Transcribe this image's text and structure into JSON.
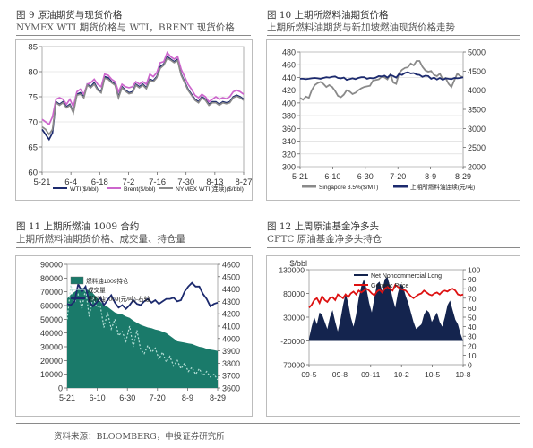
{
  "footer": "资料来源：BLOOMBERG，中投证券研究所",
  "charts": {
    "fig9": {
      "title": "图 9  原油期货与现货价格",
      "subtitle": "NYMEX WTI 期货价格与 WTI，BRENT 现货价格",
      "chart_data": {
        "type": "line",
        "x_labels": [
          "5-21",
          "6-4",
          "6-18",
          "7-2",
          "7-16",
          "7-30",
          "8-13",
          "8-27"
        ],
        "ylim": [
          60,
          85
        ],
        "y_ticks": [
          60,
          65,
          70,
          75,
          80,
          85
        ],
        "series": [
          {
            "name": "WTI($/bbl)",
            "color": "#1c2a6e",
            "values": [
              68.5,
              67.5,
              66.5,
              67.8,
              74,
              73.5,
              74,
              73,
              73.5,
              72,
              75.5,
              75.8,
              75,
              77.5,
              77,
              77.8,
              76.5,
              76,
              79,
              78.8,
              78,
              77.5,
              75,
              77,
              76.3,
              75.8,
              76,
              77.5,
              77,
              77.5,
              76.8,
              78.5,
              78.2,
              79,
              81,
              81.5,
              83,
              82.5,
              82,
              82.5,
              79.5,
              78,
              76.5,
              75.5,
              74.5,
              74,
              75,
              74.5,
              73.5,
              74,
              74,
              73.5,
              74,
              73.8,
              74,
              75,
              75.3,
              75,
              74.5
            ]
          },
          {
            "name": "Brent($/bbl)",
            "color": "#cc66cc",
            "values": [
              70.5,
              70,
              69.5,
              71,
              74.5,
              74.8,
              74.5,
              73.5,
              74.5,
              73,
              76,
              76.5,
              75.5,
              77.5,
              77.8,
              78.5,
              77.5,
              77,
              79.5,
              79.3,
              78.5,
              78,
              76,
              77.5,
              77,
              76.8,
              77,
              78,
              77.5,
              78,
              77.5,
              79.5,
              79,
              79.8,
              81.8,
              82,
              83.8,
              83,
              82.5,
              83,
              80.5,
              79,
              77.5,
              76.5,
              75.3,
              74.8,
              75.5,
              75,
              74,
              74.5,
              75,
              74.5,
              74.8,
              74.6,
              75,
              76,
              76.3,
              76,
              75.5
            ]
          },
          {
            "name": "NYMEX WTI(连续)($/bbl)",
            "color": "#8a8a8a",
            "values": [
              69,
              68.5,
              67.5,
              68.5,
              73.8,
              73.3,
              73.8,
              72.8,
              73.3,
              71.8,
              75.3,
              75.5,
              74.8,
              77.3,
              76.8,
              77.5,
              76.3,
              75.8,
              78.7,
              78.5,
              77.8,
              77.3,
              74.8,
              76.8,
              76.1,
              75.6,
              75.8,
              77.3,
              76.8,
              77.3,
              76.6,
              78.3,
              78,
              78.8,
              80.7,
              81.3,
              82.7,
              82.3,
              81.8,
              82.2,
              79.3,
              77.8,
              76.3,
              75.3,
              74.3,
              73.8,
              74.8,
              74.3,
              73.3,
              73.8,
              73.8,
              73.3,
              73.8,
              73.6,
              73.8,
              74.8,
              75.1,
              74.8,
              74.3
            ]
          }
        ],
        "legend_position": "bottom"
      }
    },
    "fig10": {
      "title": "图 10  上期所燃料油期货价格",
      "subtitle": "上期所燃料油期货与新加坡燃油现货价格走势",
      "chart_data": {
        "type": "line",
        "x_labels": [
          "5-21",
          "6-10",
          "6-30",
          "7-20",
          "8-9",
          "8-29"
        ],
        "ylim_left": [
          300,
          480
        ],
        "y_ticks_left": [
          300,
          320,
          340,
          360,
          380,
          400,
          420,
          440,
          460,
          480
        ],
        "ylim_right": [
          2000,
          5000
        ],
        "y_ticks_right": [
          2000,
          2500,
          3000,
          3500,
          4000,
          4500,
          5000
        ],
        "series": [
          {
            "name": "Singapore 3.5%($/MT)",
            "axis": "left",
            "color": "#8a8a8a",
            "values": [
              408,
              405,
              410,
              408,
              420,
              428,
              431,
              433,
              430,
              425,
              428,
              425,
              419,
              411,
              409,
              413,
              420,
              418,
              414,
              416,
              420,
              423,
              425,
              426,
              427,
              435,
              436,
              437,
              441,
              440,
              437,
              445,
              432,
              430,
              447,
              452,
              455,
              456,
              462,
              459,
              466,
              466,
              457,
              451,
              449,
              450,
              444,
              442,
              446,
              437,
              439,
              430,
              425,
              436,
              446,
              442,
              440
            ]
          },
          {
            "name": "上期所燃料油连续(元/吨)",
            "axis": "right",
            "color": "#1c2a6e",
            "values": [
              4300,
              4300,
              4290,
              4300,
              4310,
              4320,
              4310,
              4300,
              4320,
              4340,
              4330,
              4350,
              4360,
              4320,
              4310,
              4330,
              4270,
              4290,
              4310,
              4290,
              4320,
              4340,
              4340,
              4300,
              4320,
              4310,
              4330,
              4370,
              4360,
              4380,
              4330,
              4400,
              4370,
              4330,
              4420,
              4400,
              4450,
              4470,
              4440,
              4450,
              4410,
              4400,
              4350,
              4380,
              4370,
              4300,
              4330,
              4280,
              4320,
              4270,
              4310,
              4300,
              4290,
              4320,
              4310,
              4320,
              4340
            ]
          }
        ],
        "legend_position": "bottom"
      }
    },
    "fig11": {
      "title": "图 11  上期所燃油 1009 合约",
      "subtitle": "上期所燃料油期货价格、成交量、持仓量",
      "chart_data": {
        "type": "area",
        "x_labels": [
          "5-21",
          "6-10",
          "6-30",
          "7-20",
          "8-9",
          "8-29"
        ],
        "ylim_left": [
          0,
          90000
        ],
        "y_ticks_left": [
          0,
          10000,
          20000,
          30000,
          40000,
          50000,
          60000,
          70000,
          80000,
          90000
        ],
        "ylim_right": [
          3600,
          4600
        ],
        "y_ticks_right": [
          3600,
          3700,
          3800,
          3900,
          4000,
          4100,
          4200,
          4300,
          4400,
          4500,
          4600
        ],
        "series": [
          {
            "name": "燃料油1009持仓",
            "axis": "left",
            "color": "#1a7a6a",
            "values": [
              65000,
              68000,
              70000,
              72000,
              73000,
              72000,
              71000,
              69000,
              66000,
              63000,
              60000,
              59000,
              57000,
              55000,
              54000,
              53500,
              52000,
              51000,
              49000,
              47500,
              46000,
              45000,
              44000,
              43500,
              42500,
              42000,
              41000,
              40000,
              38000,
              36000,
              34000,
              33500,
              33000,
              32500,
              32000,
              31000,
              30000,
              29500,
              28500,
              28000,
              27500,
              27000
            ]
          },
          {
            "name": "成交量",
            "axis": "left",
            "color": "#b8e0d8",
            "values": [
              50000,
              75000,
              62000,
              68000,
              58000,
              72000,
              52000,
              66000,
              59000,
              60000,
              44000,
              55000,
              43000,
              50000,
              38000,
              41000,
              34000,
              45000,
              30000,
              42000,
              28000,
              25000,
              31000,
              26000,
              29000,
              21000,
              26000,
              19000,
              23000,
              16000,
              20000,
              14000,
              18000,
              12000,
              15000,
              10000,
              14000,
              9000,
              12000,
              8000,
              10000,
              6000
            ]
          },
          {
            "name": "燃料油1009(元/吨)-右轴",
            "axis": "right",
            "color": "#1c2a6e",
            "values": [
              4280,
              4270,
              4300,
              4440,
              4380,
              4420,
              4300,
              4260,
              4290,
              4330,
              4270,
              4310,
              4350,
              4290,
              4250,
              4270,
              4240,
              4270,
              4310,
              4280,
              4270,
              4300,
              4320,
              4290,
              4310,
              4280,
              4300,
              4320,
              4320,
              4330,
              4300,
              4310,
              4380,
              4420,
              4450,
              4420,
              4420,
              4360,
              4320,
              4260,
              4280,
              4290
            ]
          }
        ],
        "legend_position": "top-left"
      }
    },
    "fig12": {
      "title": "图 12  上周原油基金净多头",
      "subtitle": "CFTC 原油基金净多头持仓",
      "chart_data": {
        "type": "area",
        "ylabel_left": "$/bbl",
        "x_labels": [
          "09-5",
          "09-8",
          "09-11",
          "10-2",
          "10-5",
          "10-8"
        ],
        "ylim_left": [
          -70000,
          130000
        ],
        "y_ticks_left": [
          -70000,
          -20000,
          30000,
          80000,
          130000
        ],
        "ylim_right": [
          0,
          100
        ],
        "y_ticks_right": [
          0,
          10,
          20,
          30,
          40,
          50,
          60,
          70,
          80,
          90,
          100
        ],
        "series": [
          {
            "name": "Net Noncommercial Long",
            "axis": "left",
            "color": "#14244e",
            "values": [
              -15000,
              10000,
              30000,
              15000,
              40000,
              35000,
              20000,
              5000,
              30000,
              45000,
              20000,
              0,
              25000,
              55000,
              80000,
              60000,
              30000,
              10000,
              35000,
              70000,
              95000,
              110000,
              90000,
              60000,
              40000,
              70000,
              100000,
              105000,
              85000,
              110000,
              115000,
              95000,
              70000,
              50000,
              80000,
              100000,
              95000,
              75000,
              60000,
              40000,
              20000,
              5000,
              10000,
              15000,
              35000,
              45000,
              40000,
              20000,
              30000,
              40000,
              20000,
              10000,
              30000,
              55000,
              65000,
              45000,
              25000,
              15000,
              -5000,
              -20000
            ]
          },
          {
            "name": "Generic Price",
            "axis": "right",
            "color": "#dd1111",
            "values": [
              60,
              63,
              68,
              70,
              65,
              72,
              68,
              66,
              70,
              71,
              68,
              74,
              72,
              70,
              74,
              71,
              75,
              77,
              74,
              78,
              76,
              78,
              80,
              78,
              75,
              73,
              77,
              79,
              76,
              80,
              82,
              80,
              78,
              84,
              82,
              80,
              79,
              78,
              75,
              72,
              70,
              72,
              74,
              75,
              78,
              76,
              74,
              73,
              75,
              76,
              74,
              77,
              78,
              77,
              79,
              80,
              78,
              74,
              73,
              74
            ]
          }
        ],
        "legend_position": "top"
      }
    }
  }
}
